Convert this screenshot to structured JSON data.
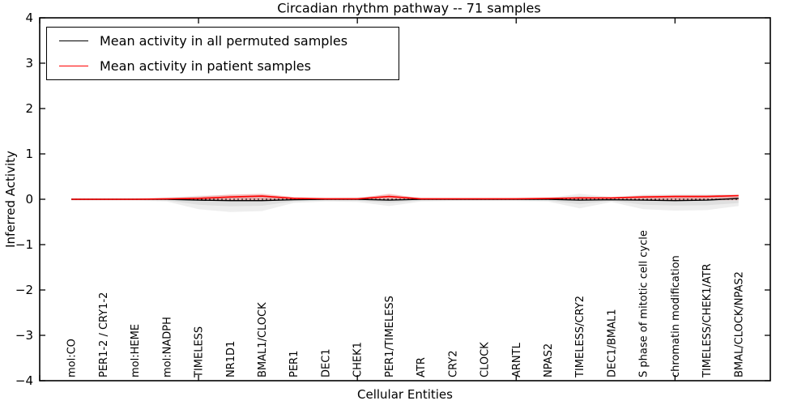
{
  "title": "Circadian rhythm pathway -- 71 samples",
  "axes": {
    "x_label": "Cellular Entities",
    "y_label": "Inferred Activity",
    "y_lim": [
      -4,
      4
    ],
    "y_ticks": [
      4,
      3,
      2,
      1,
      0,
      -1,
      -2,
      -3,
      -4
    ],
    "x_numeric_ticks": [
      0,
      5,
      10,
      15,
      20
    ],
    "x_value_range": [
      0,
      23
    ],
    "grid": false
  },
  "legend": {
    "position": "upper-left",
    "items": [
      {
        "label": "Mean activity in all permuted samples",
        "color": "#000000"
      },
      {
        "label": "Mean activity in patient samples",
        "color": "#ff0000"
      }
    ]
  },
  "colors": {
    "permuted_line": "#000000",
    "patient_line": "#ff0000",
    "permuted_band": "rgba(120,120,120,0.13)",
    "patient_band": "rgba(255,0,0,0.22)",
    "zero_line": "#000000"
  },
  "chart_data": {
    "type": "line",
    "title": "Circadian rhythm pathway -- 71 samples",
    "xlabel": "Cellular Entities",
    "ylabel": "Inferred Activity",
    "ylim": [
      -4,
      4
    ],
    "legend_position": "upper left",
    "categories": [
      "mol:CO",
      "PER1-2 / CRY1-2",
      "mol:HEME",
      "mol:NADPH",
      "TIMELESS",
      "NR1D1",
      "BMAL1/CLOCK",
      "PER1",
      "DEC1",
      "CHEK1",
      "PER1/TIMELESS",
      "ATR",
      "CRY2",
      "CLOCK",
      "ARNTL",
      "NPAS2",
      "TIMELESS/CRY2",
      "DEC1/BMAL1",
      "S phase of mitotic cell cycle",
      "chromatin modification",
      "TIMELESS/CHEK1/ATR",
      "BMAL/CLOCK/NPAS2"
    ],
    "series": [
      {
        "name": "Mean activity in all permuted samples",
        "color": "#000000",
        "style": "solid",
        "values": [
          0.0,
          0.0,
          0.0,
          0.0,
          -0.02,
          -0.03,
          -0.03,
          -0.01,
          0.0,
          0.0,
          -0.02,
          0.0,
          0.0,
          0.0,
          0.0,
          0.0,
          -0.02,
          -0.01,
          -0.02,
          -0.03,
          -0.02,
          0.02
        ]
      },
      {
        "name": "Mean activity in patient samples",
        "color": "#ff0000",
        "style": "solid",
        "values": [
          0.0,
          0.0,
          0.0,
          0.01,
          0.02,
          0.05,
          0.07,
          0.02,
          0.01,
          0.01,
          0.06,
          0.01,
          0.01,
          0.01,
          0.01,
          0.02,
          0.03,
          0.03,
          0.05,
          0.06,
          0.06,
          0.08
        ]
      }
    ],
    "bands": {
      "permuted_upper": [
        0.02,
        0.02,
        0.02,
        0.04,
        0.08,
        0.1,
        0.1,
        0.04,
        0.03,
        0.04,
        0.1,
        0.03,
        0.02,
        0.02,
        0.03,
        0.03,
        0.12,
        0.05,
        0.1,
        0.11,
        0.11,
        0.1
      ],
      "permuted_lower": [
        -0.03,
        -0.03,
        -0.03,
        -0.05,
        -0.22,
        -0.28,
        -0.26,
        -0.08,
        -0.05,
        -0.06,
        -0.15,
        -0.05,
        -0.04,
        -0.04,
        -0.04,
        -0.05,
        -0.2,
        -0.06,
        -0.22,
        -0.25,
        -0.24,
        -0.15
      ],
      "patient_upper": [
        0.01,
        0.01,
        0.01,
        0.02,
        0.06,
        0.1,
        0.12,
        0.05,
        0.02,
        0.02,
        0.12,
        0.02,
        0.02,
        0.02,
        0.02,
        0.02,
        0.05,
        0.04,
        0.08,
        0.09,
        0.09,
        0.1
      ],
      "patient_lower": [
        -0.01,
        -0.01,
        -0.01,
        -0.01,
        -0.02,
        -0.02,
        -0.02,
        -0.02,
        -0.01,
        -0.01,
        -0.02,
        -0.01,
        -0.01,
        -0.01,
        -0.01,
        -0.01,
        -0.02,
        -0.02,
        -0.02,
        -0.02,
        -0.02,
        -0.02
      ]
    },
    "zero_reference_line": {
      "y": 0,
      "style": "dotted",
      "color": "#000000"
    }
  }
}
